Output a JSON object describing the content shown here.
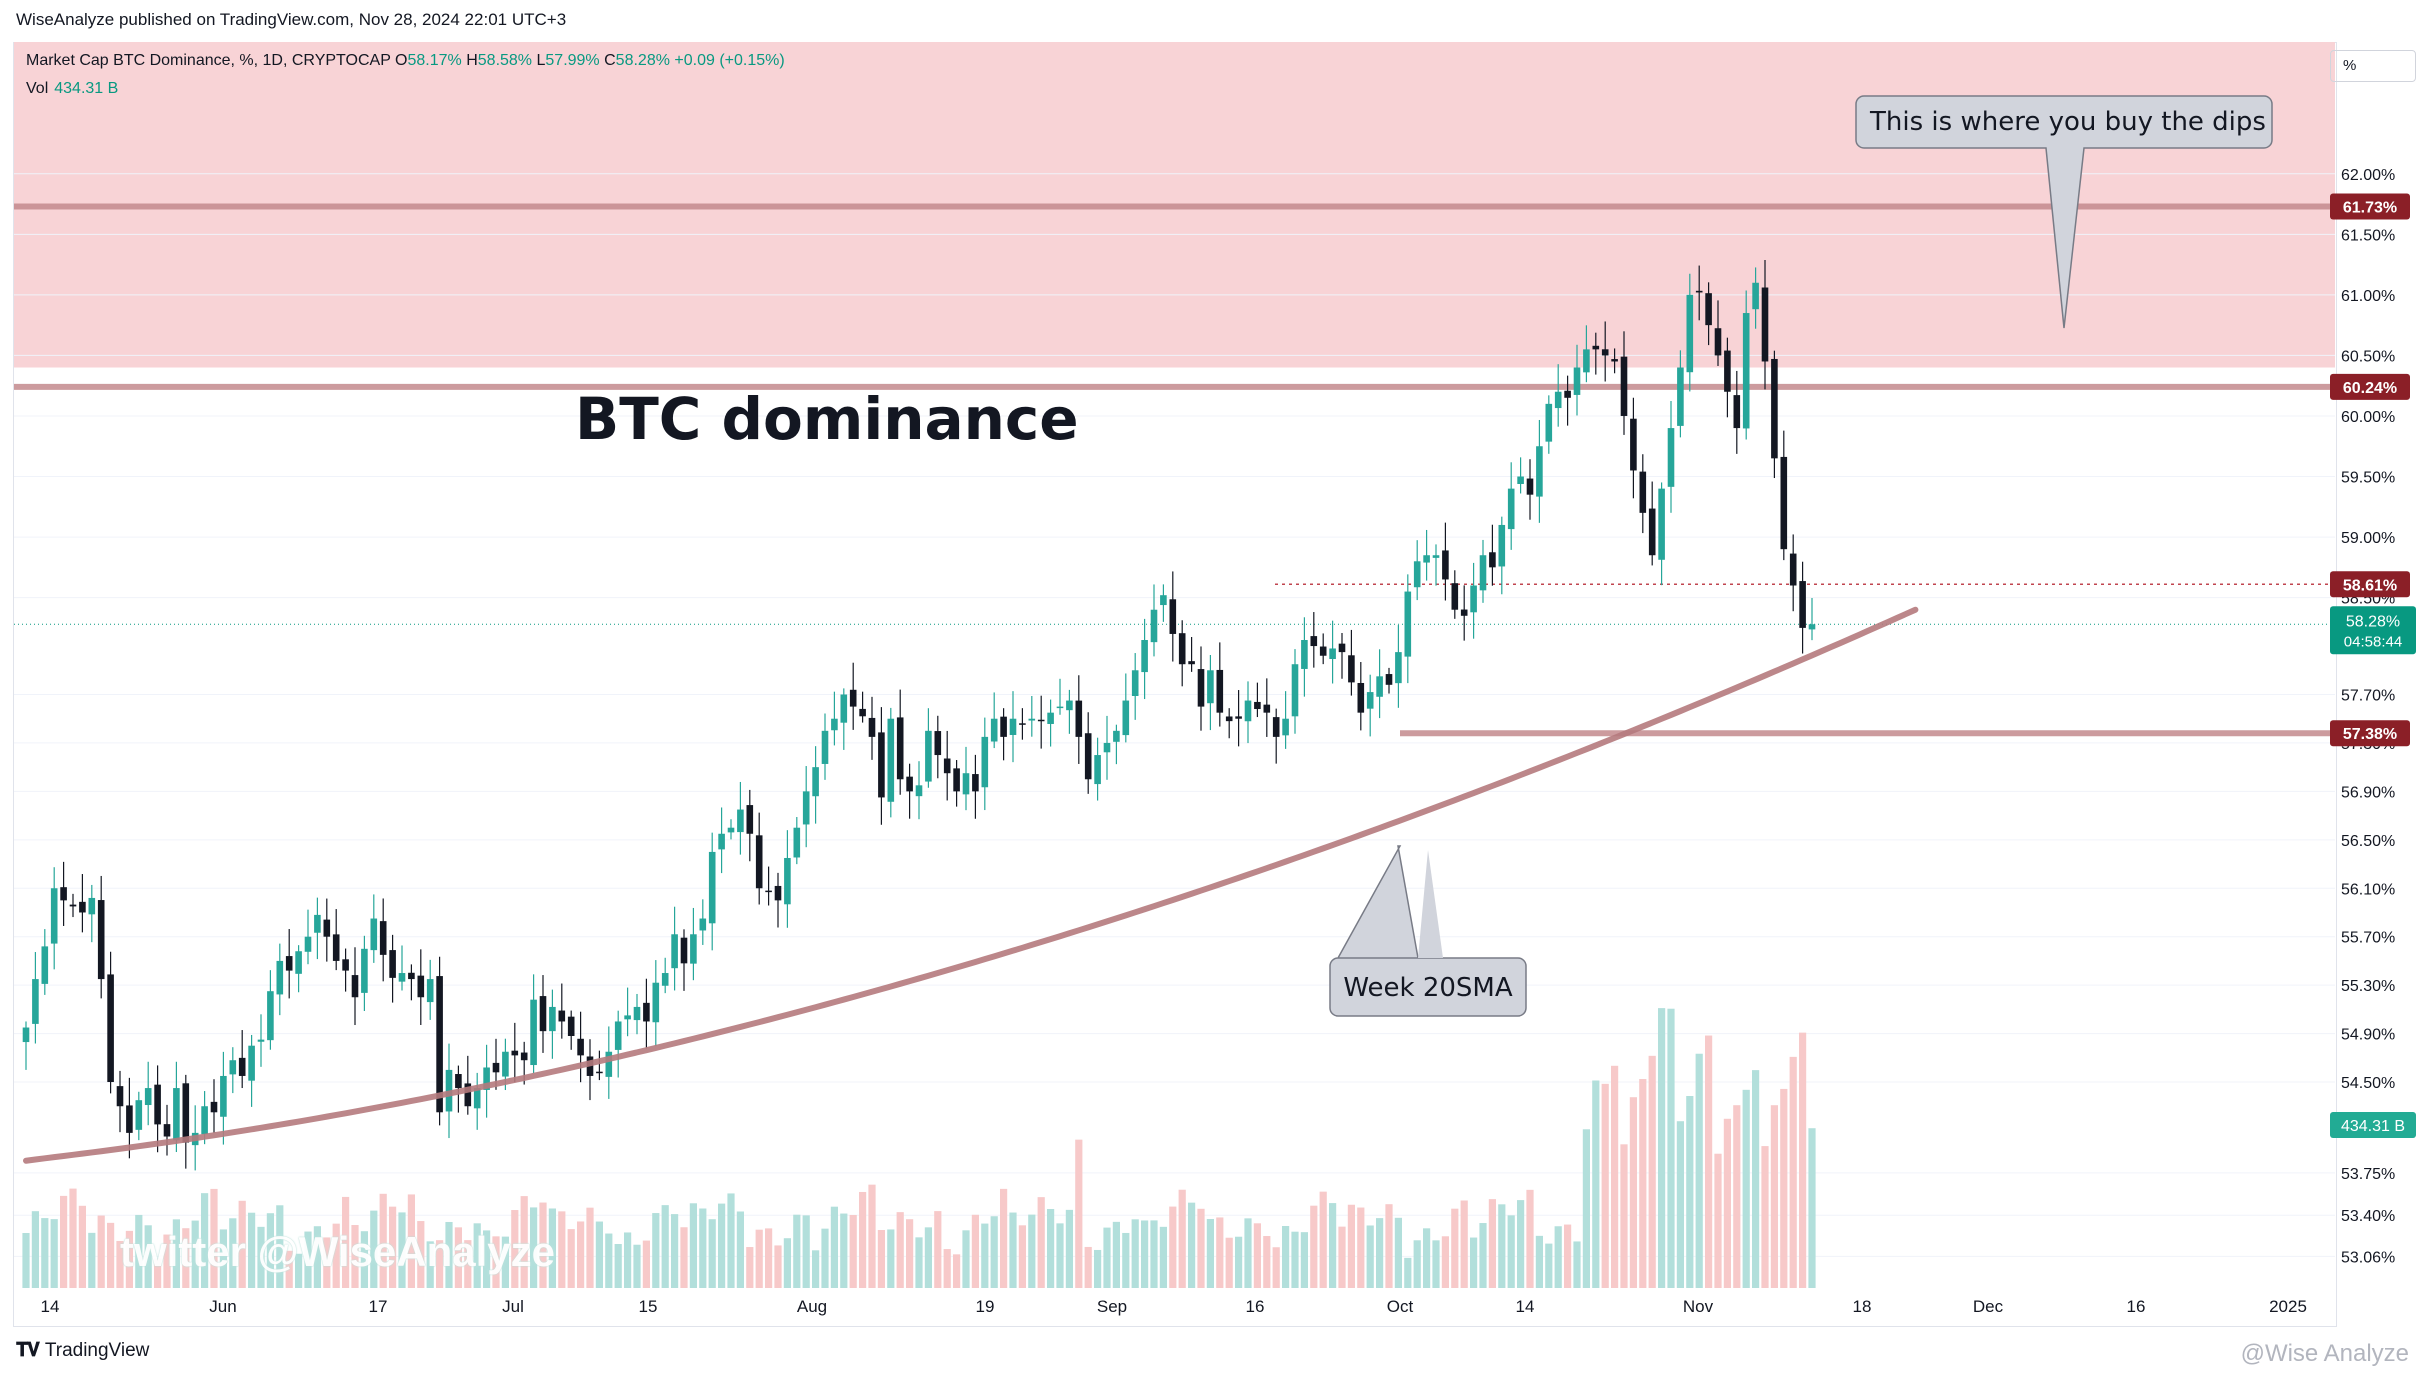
{
  "header": {
    "published": "WiseAnalyze published on TradingView.com, Nov 28, 2024 22:01 UTC+3"
  },
  "legend": {
    "symbol": "Market Cap BTC Dominance, %, 1D, CRYPTOCAP",
    "o_label": "O",
    "o_value": "58.17%",
    "h_label": "H",
    "h_value": "58.58%",
    "l_label": "L",
    "l_value": "57.99%",
    "c_label": "C",
    "c_value": "58.28%",
    "change": "+0.09 (+0.15%)",
    "vol_label": "Vol",
    "vol_value": "434.31 B"
  },
  "scale_unit_button": "%",
  "title_text": "BTC dominance",
  "watermark": "twitter @WiseAnalyze",
  "credit": "@Wise Analyze",
  "footer_brand": "TradingView",
  "annotations": {
    "callout_top": "This is where you buy the dips",
    "callout_sma": "Week 20SMA"
  },
  "colors": {
    "up": "#26a69a",
    "down": "#131722",
    "vol_up": "#b2dfdb",
    "vol_down": "#f7c9c9",
    "zone": "#f8d3d6",
    "level": "#c48a8e",
    "level_badge": "#8b1f27",
    "sma": "#b57a7d",
    "path": "#8fcf7a",
    "last_badge": "#089981"
  },
  "chart_data": {
    "type": "candlestick",
    "title": "",
    "y_axis": {
      "ticks": [
        "62.00%",
        "61.50%",
        "61.00%",
        "60.50%",
        "60.00%",
        "59.50%",
        "59.00%",
        "58.50%",
        "57.70%",
        "57.30%",
        "56.90%",
        "56.50%",
        "56.10%",
        "55.70%",
        "55.30%",
        "54.90%",
        "54.50%",
        "53.75%",
        "53.40%",
        "53.06%"
      ],
      "ylim": [
        53.0,
        62.2
      ]
    },
    "x_axis": {
      "ticks": [
        "14",
        "Jun",
        "17",
        "Jul",
        "15",
        "Aug",
        "19",
        "Sep",
        "16",
        "Oct",
        "14",
        "Nov",
        "18",
        "Dec",
        "16",
        "2025"
      ]
    },
    "levels": [
      {
        "label": "61.73%",
        "value": 61.73
      },
      {
        "label": "60.24%",
        "value": 60.24
      },
      {
        "label": "58.61%",
        "value": 58.61
      },
      {
        "label": "57.38%",
        "value": 57.38
      }
    ],
    "last_price": {
      "label": "58.28%",
      "countdown": "04:58:44",
      "value": 58.28
    },
    "volume_badge": "434.31 B",
    "resistance_zone": [
      60.4,
      62.6
    ],
    "sma_label": "Week 20SMA",
    "start_date": "2024-05-10",
    "closes": [
      54.95,
      55.35,
      55.62,
      56.1,
      56.0,
      55.95,
      55.9,
      56.02,
      55.35,
      54.5,
      54.3,
      54.08,
      54.35,
      54.45,
      54.15,
      54.05,
      54.45,
      54.0,
      54.08,
      54.3,
      54.25,
      54.55,
      54.68,
      54.55,
      54.8,
      54.85,
      55.25,
      55.5,
      55.42,
      55.58,
      55.7,
      55.88,
      55.7,
      55.5,
      55.42,
      55.2,
      55.6,
      55.85,
      55.55,
      55.36,
      55.4,
      55.35,
      55.2,
      55.35,
      54.25,
      54.6,
      54.45,
      54.3,
      54.45,
      54.62,
      54.58,
      54.75,
      54.72,
      54.68,
      55.18,
      54.92,
      55.12,
      55.0,
      54.88,
      54.72,
      54.55,
      54.58,
      54.75,
      55.0,
      55.05,
      55.12,
      55.0,
      55.32,
      55.4,
      55.72,
      55.48,
      55.72,
      55.85,
      56.4,
      56.55,
      56.6,
      56.75,
      56.55,
      56.1,
      56.08,
      56.0,
      56.35,
      56.6,
      56.9,
      57.1,
      57.4,
      57.5,
      57.7,
      57.6,
      57.52,
      57.35,
      56.85,
      57.5,
      57.0,
      56.9,
      56.95,
      57.4,
      57.2,
      57.05,
      56.9,
      57.05,
      56.9,
      57.35,
      57.5,
      57.35,
      57.5,
      57.45,
      57.5,
      57.48,
      57.55,
      57.6,
      57.65,
      57.35,
      57.0,
      57.2,
      57.3,
      57.4,
      57.65,
      57.9,
      58.15,
      58.4,
      58.52,
      58.2,
      57.95,
      57.95,
      57.6,
      57.9,
      57.55,
      57.48,
      57.5,
      57.65,
      57.58,
      57.55,
      57.35,
      57.5,
      57.95,
      58.15,
      58.1,
      58.02,
      58.08,
      58.05,
      57.8,
      57.55,
      57.72,
      57.85,
      57.78,
      58.05,
      58.55,
      58.8,
      58.85,
      58.85,
      58.65,
      58.4,
      58.35,
      58.6,
      58.85,
      58.75,
      59.1,
      59.4,
      59.5,
      59.35,
      59.75,
      60.1,
      60.2,
      60.15,
      60.4,
      60.55,
      60.55,
      60.5,
      60.45,
      60.0,
      59.55,
      59.2,
      58.85,
      59.4,
      59.9,
      60.4,
      61.0,
      61.02,
      60.75,
      60.5,
      60.2,
      59.9,
      60.85,
      61.1,
      60.45,
      59.65,
      58.9,
      58.6,
      58.25,
      58.28
    ]
  }
}
